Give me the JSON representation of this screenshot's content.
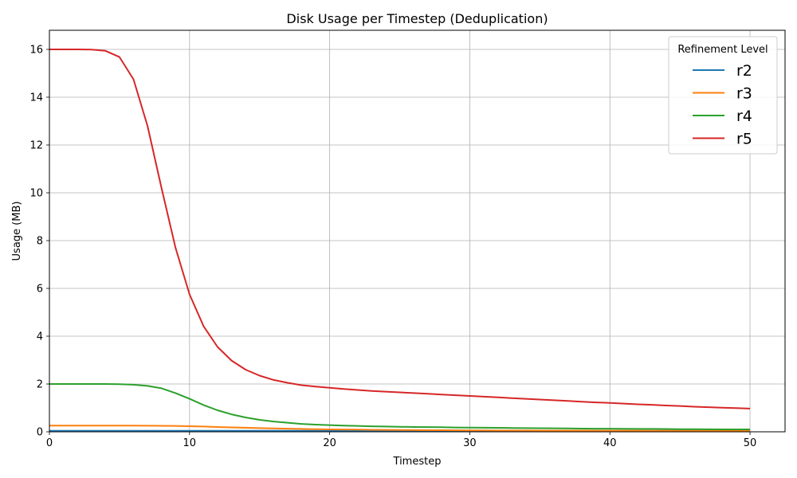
{
  "chart_data": {
    "type": "line",
    "title": "Disk Usage per Timestep (Deduplication)",
    "xlabel": "Timestep",
    "ylabel": "Usage (MB)",
    "xlim": [
      0,
      52.5
    ],
    "ylim": [
      0,
      16.8
    ],
    "xticks": [
      0,
      10,
      20,
      30,
      40,
      50
    ],
    "yticks": [
      0,
      2,
      4,
      6,
      8,
      10,
      12,
      14,
      16
    ],
    "grid": true,
    "legend": {
      "title": "Refinement Level",
      "position": "top-right"
    },
    "x": [
      0,
      1,
      2,
      3,
      4,
      5,
      6,
      7,
      8,
      9,
      10,
      11,
      12,
      13,
      14,
      15,
      16,
      17,
      18,
      19,
      20,
      21,
      22,
      23,
      24,
      25,
      26,
      27,
      28,
      29,
      30,
      31,
      32,
      33,
      34,
      35,
      36,
      37,
      38,
      39,
      40,
      41,
      42,
      43,
      44,
      45,
      46,
      47,
      48,
      49,
      50
    ],
    "series": [
      {
        "name": "r2",
        "color": "#1f77b4",
        "values": [
          0.04,
          0.04,
          0.04,
          0.04,
          0.04,
          0.04,
          0.04,
          0.04,
          0.04,
          0.04,
          0.04,
          0.04,
          0.04,
          0.04,
          0.04,
          0.04,
          0.04,
          0.04,
          0.04,
          0.04,
          0.04,
          0.04,
          0.04,
          0.04,
          0.04,
          0.04,
          0.04,
          0.04,
          0.04,
          0.04,
          0.04,
          0.04,
          0.04,
          0.04,
          0.04,
          0.04,
          0.04,
          0.04,
          0.04,
          0.04,
          0.04,
          0.04,
          0.04,
          0.04,
          0.04,
          0.04,
          0.04,
          0.04,
          0.04,
          0.04,
          0.04
        ]
      },
      {
        "name": "r3",
        "color": "#ff7f0e",
        "values": [
          0.26,
          0.26,
          0.26,
          0.26,
          0.26,
          0.26,
          0.26,
          0.255,
          0.25,
          0.245,
          0.235,
          0.22,
          0.2,
          0.185,
          0.17,
          0.155,
          0.14,
          0.13,
          0.12,
          0.11,
          0.1,
          0.095,
          0.09,
          0.085,
          0.08,
          0.075,
          0.07,
          0.068,
          0.065,
          0.062,
          0.06,
          0.058,
          0.056,
          0.055,
          0.053,
          0.052,
          0.05,
          0.049,
          0.048,
          0.047,
          0.046,
          0.045,
          0.044,
          0.043,
          0.042,
          0.041,
          0.04,
          0.04,
          0.039,
          0.038,
          0.038
        ]
      },
      {
        "name": "r4",
        "color": "#2ca02c",
        "values": [
          2.0,
          2.0,
          2.0,
          2.0,
          2.0,
          1.99,
          1.97,
          1.92,
          1.82,
          1.62,
          1.38,
          1.12,
          0.9,
          0.73,
          0.6,
          0.5,
          0.43,
          0.38,
          0.33,
          0.3,
          0.28,
          0.26,
          0.245,
          0.23,
          0.22,
          0.21,
          0.2,
          0.195,
          0.19,
          0.18,
          0.175,
          0.17,
          0.165,
          0.16,
          0.155,
          0.15,
          0.145,
          0.14,
          0.135,
          0.13,
          0.13,
          0.125,
          0.12,
          0.12,
          0.115,
          0.11,
          0.11,
          0.105,
          0.1,
          0.1,
          0.1
        ]
      },
      {
        "name": "r5",
        "color": "#d62728",
        "values": [
          16.0,
          16.0,
          16.0,
          15.99,
          15.94,
          15.68,
          14.75,
          12.8,
          10.2,
          7.7,
          5.75,
          4.42,
          3.55,
          2.98,
          2.6,
          2.35,
          2.17,
          2.05,
          1.95,
          1.89,
          1.84,
          1.79,
          1.75,
          1.71,
          1.68,
          1.65,
          1.62,
          1.59,
          1.56,
          1.53,
          1.5,
          1.47,
          1.44,
          1.41,
          1.38,
          1.35,
          1.32,
          1.29,
          1.26,
          1.23,
          1.21,
          1.18,
          1.15,
          1.13,
          1.1,
          1.08,
          1.05,
          1.03,
          1.01,
          0.99,
          0.97
        ]
      }
    ]
  }
}
